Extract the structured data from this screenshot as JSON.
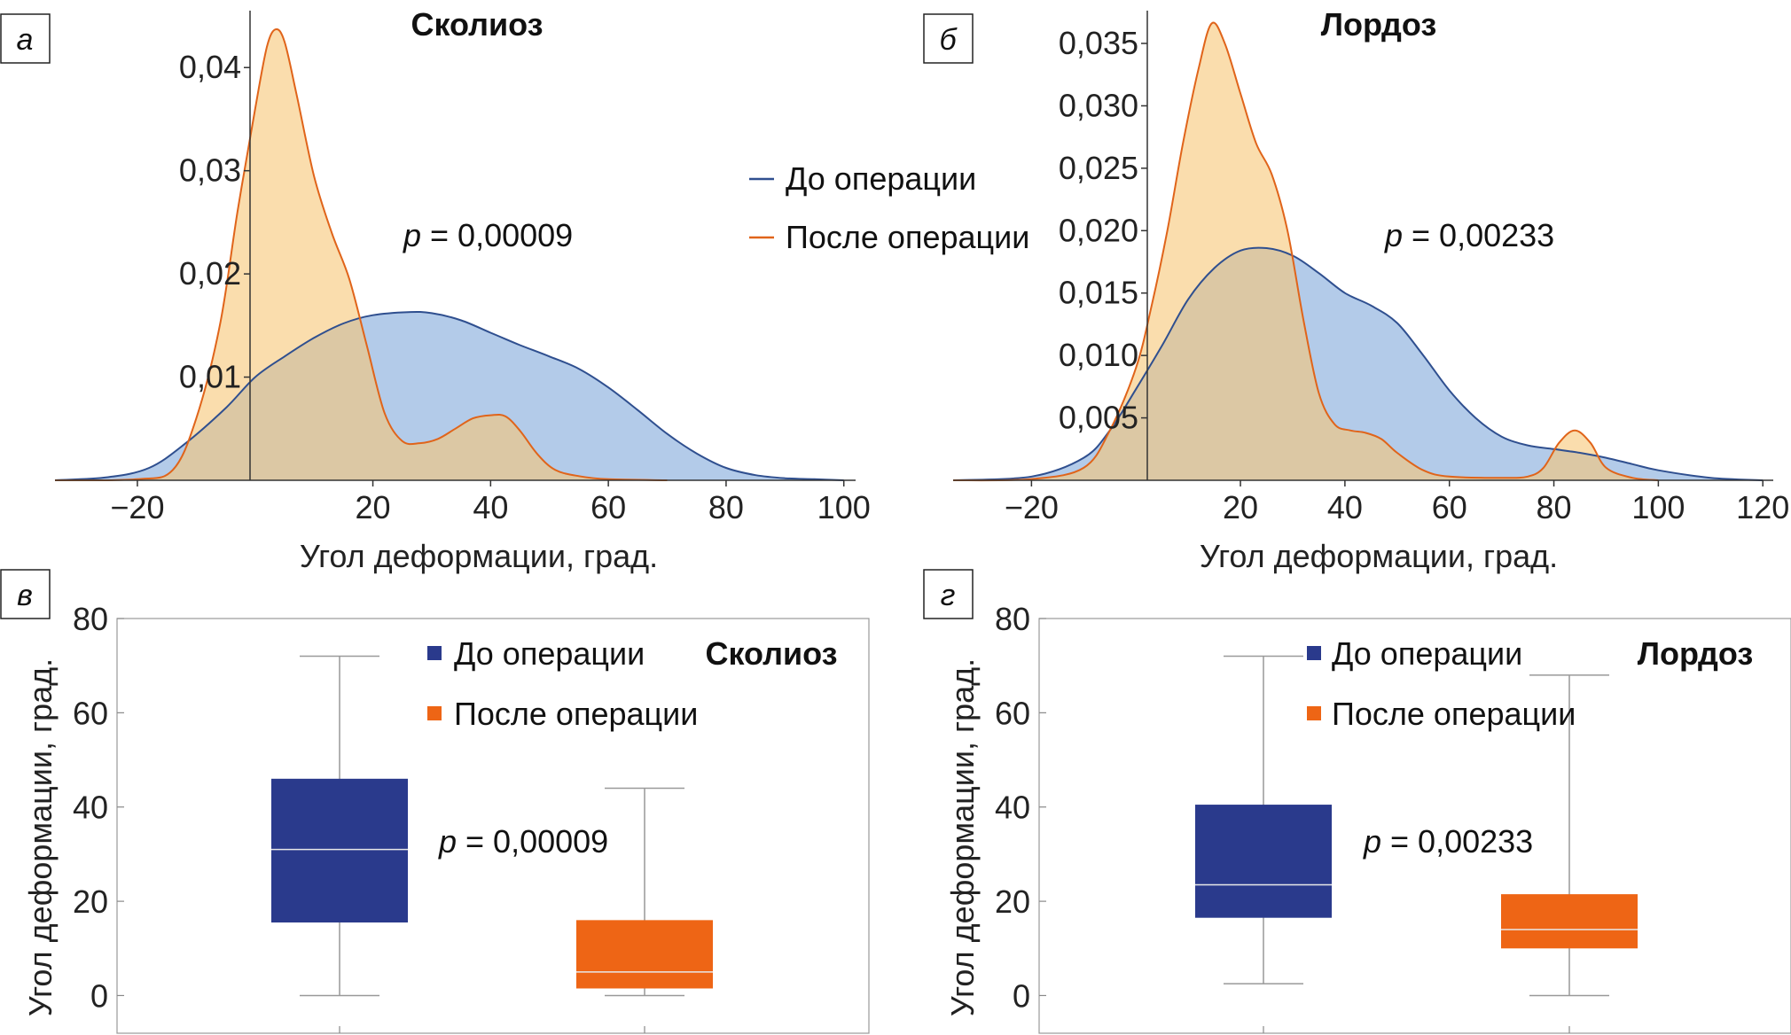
{
  "colors": {
    "before": "#2f4f8f",
    "before_fill": "#9ebde3",
    "after": "#e0641a",
    "after_fill": "#f7c776",
    "box_before": "#2a3a8c",
    "box_after": "#ee6515"
  },
  "chart_data": [
    {
      "panel_label": "а",
      "type": "area",
      "title": "Сколиоз",
      "xlabel": "Угол деформации, град.",
      "ylabel": "",
      "xlim": [
        -34,
        102
      ],
      "ylim": [
        0,
        0.045
      ],
      "x_ticks": [
        {
          "value": -20,
          "label": "−20"
        },
        {
          "value": 20,
          "label": "20"
        },
        {
          "value": 40,
          "label": "40"
        },
        {
          "value": 60,
          "label": "60"
        },
        {
          "value": 80,
          "label": "80"
        },
        {
          "value": 100,
          "label": "100"
        }
      ],
      "y_ticks": [
        {
          "value": 0.01,
          "label": "0,01"
        },
        {
          "value": 0.02,
          "label": "0,02"
        },
        {
          "value": 0.03,
          "label": "0,03"
        },
        {
          "value": 0.04,
          "label": "0,04"
        }
      ],
      "annotation": {
        "prefix": "p",
        "text": " = 0,00009"
      },
      "legend": {
        "position": "right",
        "entries": [
          "До операции",
          "После операции"
        ]
      },
      "series": [
        {
          "name": "До операции",
          "x": [
            -34,
            -25,
            -18,
            -12,
            -5,
            0,
            5,
            10,
            15,
            20,
            26,
            30,
            35,
            40,
            45,
            50,
            55,
            60,
            65,
            70,
            75,
            80,
            85,
            90,
            95,
            100
          ],
          "y": [
            0,
            0.0003,
            0.0012,
            0.0035,
            0.007,
            0.01,
            0.012,
            0.0138,
            0.0152,
            0.016,
            0.0163,
            0.0162,
            0.0155,
            0.0143,
            0.0131,
            0.012,
            0.0108,
            0.009,
            0.0068,
            0.0045,
            0.0026,
            0.0012,
            0.0005,
            0.0002,
            0.0001,
            0
          ]
        },
        {
          "name": "После операции",
          "x": [
            -34,
            -20,
            -14,
            -10,
            -6,
            -3,
            0,
            2,
            3.5,
            5,
            7,
            10,
            13,
            16,
            19,
            22,
            25,
            28,
            31,
            34,
            37,
            40,
            42.5,
            45,
            48,
            51,
            55,
            60,
            70
          ],
          "y": [
            0,
            0.0001,
            0.001,
            0.006,
            0.015,
            0.026,
            0.036,
            0.042,
            0.0437,
            0.0425,
            0.0375,
            0.0295,
            0.024,
            0.0195,
            0.013,
            0.0065,
            0.0038,
            0.0036,
            0.004,
            0.005,
            0.006,
            0.0063,
            0.0062,
            0.0048,
            0.0025,
            0.001,
            0.0004,
            0.0001,
            0
          ]
        }
      ]
    },
    {
      "panel_label": "б",
      "type": "area",
      "title": "Лордоз",
      "xlabel": "Угол деформации, град.",
      "ylabel": "",
      "xlim": [
        -35,
        122
      ],
      "ylim": [
        0,
        0.0372
      ],
      "x_ticks": [
        {
          "value": -20,
          "label": "−20"
        },
        {
          "value": 20,
          "label": "20"
        },
        {
          "value": 40,
          "label": "40"
        },
        {
          "value": 60,
          "label": "60"
        },
        {
          "value": 80,
          "label": "80"
        },
        {
          "value": 100,
          "label": "100"
        },
        {
          "value": 120,
          "label": "120"
        }
      ],
      "y_ticks": [
        {
          "value": 0.005,
          "label": "0,005"
        },
        {
          "value": 0.01,
          "label": "0,010"
        },
        {
          "value": 0.015,
          "label": "0,015"
        },
        {
          "value": 0.02,
          "label": "0,020"
        },
        {
          "value": 0.025,
          "label": "0,025"
        },
        {
          "value": 0.03,
          "label": "0,030"
        },
        {
          "value": 0.035,
          "label": "0,035"
        }
      ],
      "annotation": {
        "prefix": "p",
        "text": " = 0,00233"
      },
      "legend": null,
      "series": [
        {
          "name": "До операции",
          "x": [
            -35,
            -20,
            -10,
            -5,
            0,
            5,
            10,
            15,
            20,
            25,
            30,
            35,
            40,
            45,
            50,
            55,
            60,
            65,
            70,
            75,
            80,
            85,
            90,
            95,
            100,
            110,
            120
          ],
          "y": [
            0,
            0.0003,
            0.0018,
            0.004,
            0.0073,
            0.0108,
            0.0145,
            0.017,
            0.0184,
            0.0186,
            0.018,
            0.0166,
            0.015,
            0.014,
            0.0126,
            0.01,
            0.0072,
            0.005,
            0.0035,
            0.0028,
            0.0025,
            0.0022,
            0.0018,
            0.0013,
            0.0008,
            0.0002,
            0
          ]
        },
        {
          "name": "После операции",
          "x": [
            -35,
            -20,
            -10,
            -5,
            0,
            3,
            6,
            9,
            12,
            14.5,
            17,
            20,
            23,
            26,
            29,
            32,
            35,
            38,
            41,
            44,
            47,
            50,
            55,
            60,
            70,
            75,
            78,
            81,
            84,
            87,
            90,
            95,
            100
          ],
          "y": [
            0,
            0.0001,
            0.001,
            0.004,
            0.009,
            0.014,
            0.02,
            0.027,
            0.033,
            0.0366,
            0.035,
            0.031,
            0.027,
            0.0245,
            0.02,
            0.013,
            0.007,
            0.0045,
            0.004,
            0.0038,
            0.0033,
            0.0022,
            0.0008,
            0.0003,
            0.0002,
            0.0003,
            0.001,
            0.003,
            0.004,
            0.003,
            0.001,
            0.0002,
            0
          ]
        }
      ]
    },
    {
      "panel_label": "в",
      "type": "box",
      "title": "Сколиоз",
      "xlabel": "",
      "ylabel": "Угол деформации, град.",
      "ylim": [
        -8,
        80
      ],
      "y_ticks": [
        {
          "value": 0,
          "label": "0"
        },
        {
          "value": 20,
          "label": "20"
        },
        {
          "value": 40,
          "label": "40"
        },
        {
          "value": 60,
          "label": "60"
        },
        {
          "value": 80,
          "label": "80"
        }
      ],
      "annotation": {
        "prefix": "p",
        "text": " = 0,00009"
      },
      "legend": {
        "position": "top",
        "entries": [
          "До операции",
          "После операции"
        ]
      },
      "boxes": [
        {
          "name": "До операции",
          "min": 0,
          "q1": 15.5,
          "median": 31,
          "q3": 46,
          "max": 72
        },
        {
          "name": "После операции",
          "min": 0,
          "q1": 1.5,
          "median": 5,
          "q3": 16,
          "max": 44
        }
      ]
    },
    {
      "panel_label": "г",
      "type": "box",
      "title": "Лордоз",
      "xlabel": "",
      "ylabel": "Угол деформации, град.",
      "ylim": [
        -8,
        80
      ],
      "y_ticks": [
        {
          "value": 0,
          "label": "0"
        },
        {
          "value": 20,
          "label": "20"
        },
        {
          "value": 40,
          "label": "40"
        },
        {
          "value": 60,
          "label": "60"
        },
        {
          "value": 80,
          "label": "80"
        }
      ],
      "annotation": {
        "prefix": "p",
        "text": " = 0,00233"
      },
      "legend": {
        "position": "top",
        "entries": [
          "До операции",
          "После операции"
        ]
      },
      "boxes": [
        {
          "name": "До операции",
          "min": 2.5,
          "q1": 16.5,
          "median": 23.5,
          "q3": 40.5,
          "max": 72
        },
        {
          "name": "После операции",
          "min": 0,
          "q1": 10,
          "median": 14,
          "q3": 21.5,
          "max": 68
        }
      ]
    }
  ]
}
